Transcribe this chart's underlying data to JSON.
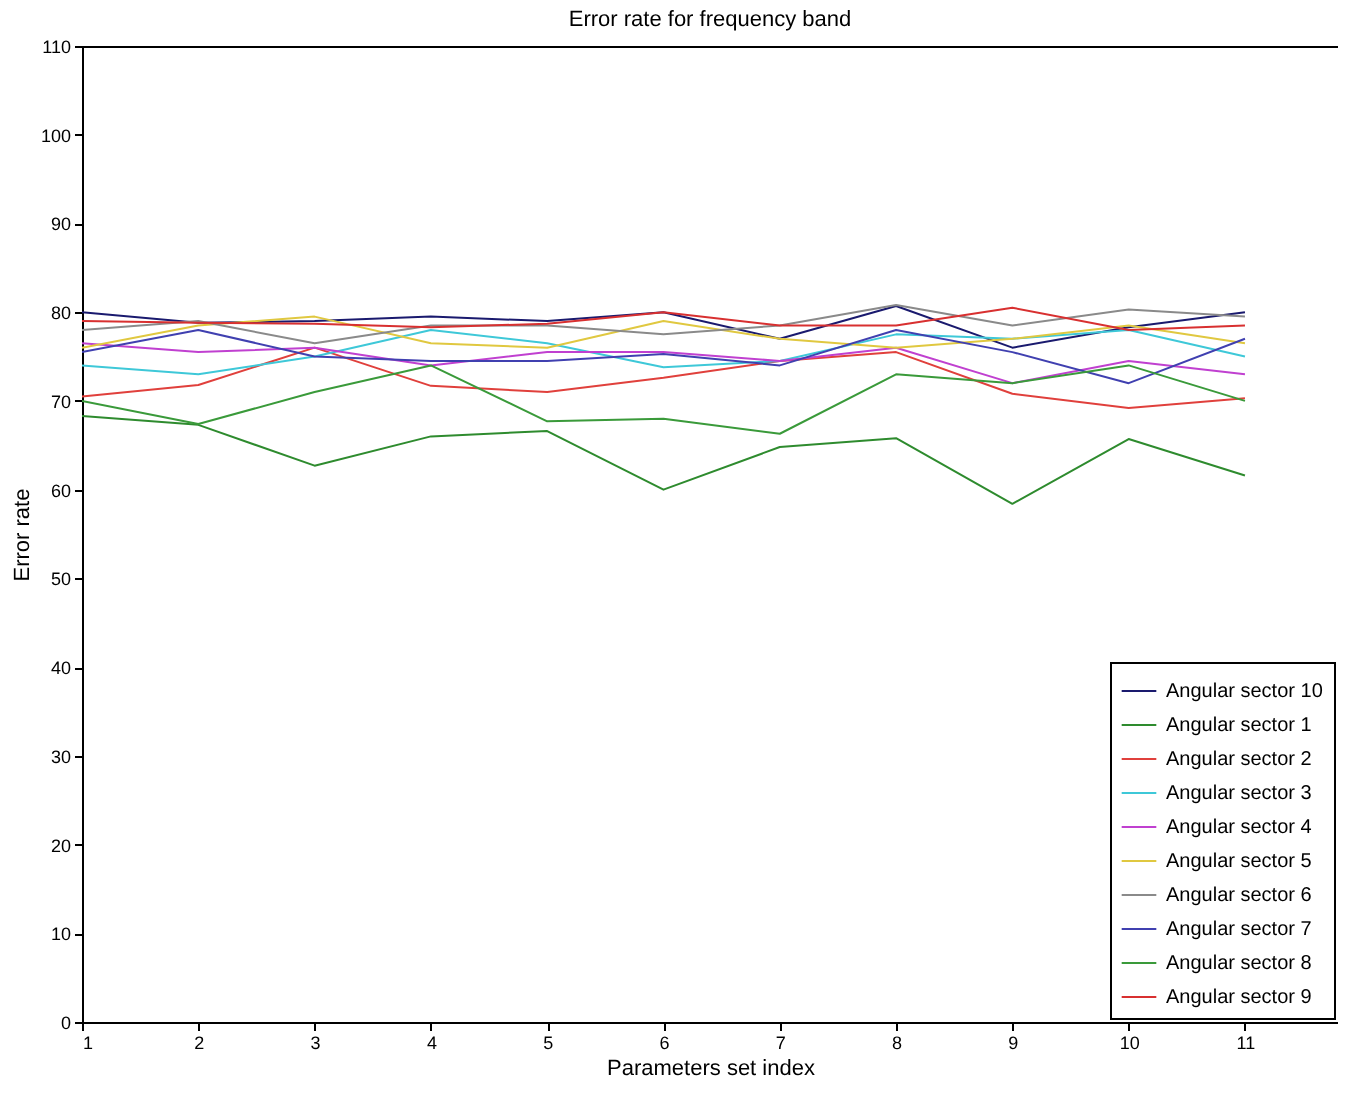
{
  "chart_data": {
    "type": "line",
    "title": "Error rate for frequency band",
    "xlabel": "Parameters set index",
    "ylabel": "Error rate",
    "x": [
      1,
      2,
      3,
      4,
      5,
      6,
      7,
      8,
      9,
      10,
      11
    ],
    "xlim": [
      1,
      11.8
    ],
    "xticks": [
      1,
      2,
      3,
      4,
      5,
      6,
      7,
      8,
      9,
      10,
      11
    ],
    "ylim": [
      0,
      110
    ],
    "yticks": [
      0,
      10,
      20,
      30,
      40,
      50,
      60,
      70,
      80,
      90,
      100,
      110
    ],
    "legend": "bottom right",
    "series": [
      {
        "name": "Angular sector 10",
        "color": "#1a1a6e",
        "values": [
          80,
          78.8,
          79,
          79.5,
          79,
          80,
          77,
          80.7,
          76,
          78.3,
          80
        ]
      },
      {
        "name": "Angular sector 1",
        "color": "#2e8b2e",
        "values": [
          68.3,
          67.3,
          62.7,
          66,
          66.6,
          60,
          64.8,
          65.8,
          58.4,
          65.7,
          61.6
        ]
      },
      {
        "name": "Angular sector 2",
        "color": "#e0403c",
        "values": [
          70.5,
          71.8,
          76,
          71.7,
          71,
          72.6,
          74.5,
          75.5,
          70.8,
          69.2,
          70.3
        ]
      },
      {
        "name": "Angular sector 3",
        "color": "#3ec8d8",
        "values": [
          74,
          73,
          75,
          78,
          76.5,
          73.8,
          74.5,
          77.5,
          77,
          78,
          75
        ]
      },
      {
        "name": "Angular sector 4",
        "color": "#c040d0",
        "values": [
          76.5,
          75.5,
          76,
          74,
          75.5,
          75.5,
          74.5,
          76,
          72,
          74.5,
          73
        ]
      },
      {
        "name": "Angular sector 5",
        "color": "#e0c840",
        "values": [
          76,
          78.5,
          79.5,
          76.5,
          76,
          79,
          77,
          76,
          77,
          78.5,
          76.5
        ]
      },
      {
        "name": "Angular sector 6",
        "color": "#8a8a8a",
        "values": [
          78,
          79,
          76.5,
          78.5,
          78.5,
          77.5,
          78.5,
          80.8,
          78.5,
          80.3,
          79.5
        ]
      },
      {
        "name": "Angular sector 7",
        "color": "#4040b0",
        "values": [
          75.5,
          78,
          75,
          74.5,
          74.5,
          75.3,
          74,
          78,
          75.5,
          72,
          77
        ]
      },
      {
        "name": "Angular sector 8",
        "color": "#3a9a3a",
        "values": [
          70,
          67.4,
          71,
          74,
          67.7,
          68,
          66.3,
          73,
          72,
          74,
          70
        ]
      },
      {
        "name": "Angular sector 9",
        "color": "#d83030",
        "values": [
          79,
          78.8,
          78.7,
          78.3,
          78.7,
          80,
          78.5,
          78.5,
          80.5,
          78,
          78.5
        ]
      }
    ]
  }
}
